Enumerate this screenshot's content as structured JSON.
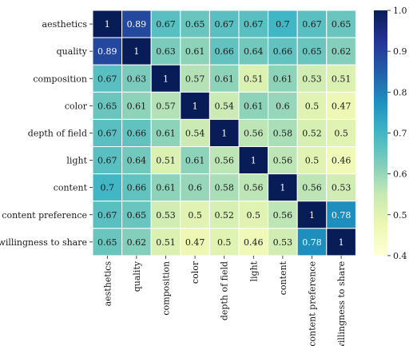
{
  "chart_data": {
    "type": "heatmap",
    "title": "",
    "xlabel": "",
    "ylabel": "",
    "rows": [
      "aesthetics",
      "quality",
      "composition",
      "color",
      "depth of field",
      "light",
      "content",
      "content preference",
      "willingness to share"
    ],
    "columns": [
      "aesthetics",
      "quality",
      "composition",
      "color",
      "depth of field",
      "light",
      "content",
      "content preference",
      "willingness to share"
    ],
    "values": [
      [
        1,
        0.89,
        0.67,
        0.65,
        0.67,
        0.67,
        0.7,
        0.67,
        0.65
      ],
      [
        0.89,
        1,
        0.63,
        0.61,
        0.66,
        0.64,
        0.66,
        0.65,
        0.62
      ],
      [
        0.67,
        0.63,
        1,
        0.57,
        0.61,
        0.51,
        0.61,
        0.53,
        0.51
      ],
      [
        0.65,
        0.61,
        0.57,
        1,
        0.54,
        0.61,
        0.6,
        0.5,
        0.47
      ],
      [
        0.67,
        0.66,
        0.61,
        0.54,
        1,
        0.56,
        0.58,
        0.52,
        0.5
      ],
      [
        0.67,
        0.64,
        0.51,
        0.61,
        0.56,
        1,
        0.56,
        0.5,
        0.46
      ],
      [
        0.7,
        0.66,
        0.61,
        0.6,
        0.58,
        0.56,
        1,
        0.56,
        0.53
      ],
      [
        0.67,
        0.65,
        0.53,
        0.5,
        0.52,
        0.5,
        0.56,
        1,
        0.78
      ],
      [
        0.65,
        0.62,
        0.51,
        0.47,
        0.5,
        0.46,
        0.53,
        0.78,
        1
      ]
    ],
    "value_labels": [
      [
        "1",
        "0.89",
        "0.67",
        "0.65",
        "0.67",
        "0.67",
        "0.7",
        "0.67",
        "0.65"
      ],
      [
        "0.89",
        "1",
        "0.63",
        "0.61",
        "0.66",
        "0.64",
        "0.66",
        "0.65",
        "0.62"
      ],
      [
        "0.67",
        "0.63",
        "1",
        "0.57",
        "0.61",
        "0.51",
        "0.61",
        "0.53",
        "0.51"
      ],
      [
        "0.65",
        "0.61",
        "0.57",
        "1",
        "0.54",
        "0.61",
        "0.6",
        "0.5",
        "0.47"
      ],
      [
        "0.67",
        "0.66",
        "0.61",
        "0.54",
        "1",
        "0.56",
        "0.58",
        "0.52",
        "0.5"
      ],
      [
        "0.67",
        "0.64",
        "0.51",
        "0.61",
        "0.56",
        "1",
        "0.56",
        "0.5",
        "0.46"
      ],
      [
        "0.7",
        "0.66",
        "0.61",
        "0.6",
        "0.58",
        "0.56",
        "1",
        "0.56",
        "0.53"
      ],
      [
        "0.67",
        "0.65",
        "0.53",
        "0.5",
        "0.52",
        "0.5",
        "0.56",
        "1",
        "0.78"
      ],
      [
        "0.65",
        "0.62",
        "0.51",
        "0.47",
        "0.5",
        "0.46",
        "0.53",
        "0.78",
        "1"
      ]
    ],
    "colorbar": {
      "min": 0.4,
      "max": 1.0,
      "ticks": [
        0.4,
        0.5,
        0.6,
        0.7,
        0.8,
        0.9,
        1.0
      ],
      "tick_labels": [
        "0.4",
        "0.5",
        "0.6",
        "0.7",
        "0.8",
        "0.9",
        "1.0"
      ],
      "colormap": "YlGnBu",
      "position": "right"
    },
    "colormap_stops": [
      [
        0.0,
        "#ffffd9"
      ],
      [
        0.125,
        "#edf8b1"
      ],
      [
        0.25,
        "#c7e9b4"
      ],
      [
        0.375,
        "#7fcdbb"
      ],
      [
        0.5,
        "#41b6c4"
      ],
      [
        0.625,
        "#1d91c0"
      ],
      [
        0.75,
        "#225ea8"
      ],
      [
        0.875,
        "#253494"
      ],
      [
        1.0,
        "#081d58"
      ]
    ],
    "cell_border_color": "#ffffff",
    "grid": false
  }
}
